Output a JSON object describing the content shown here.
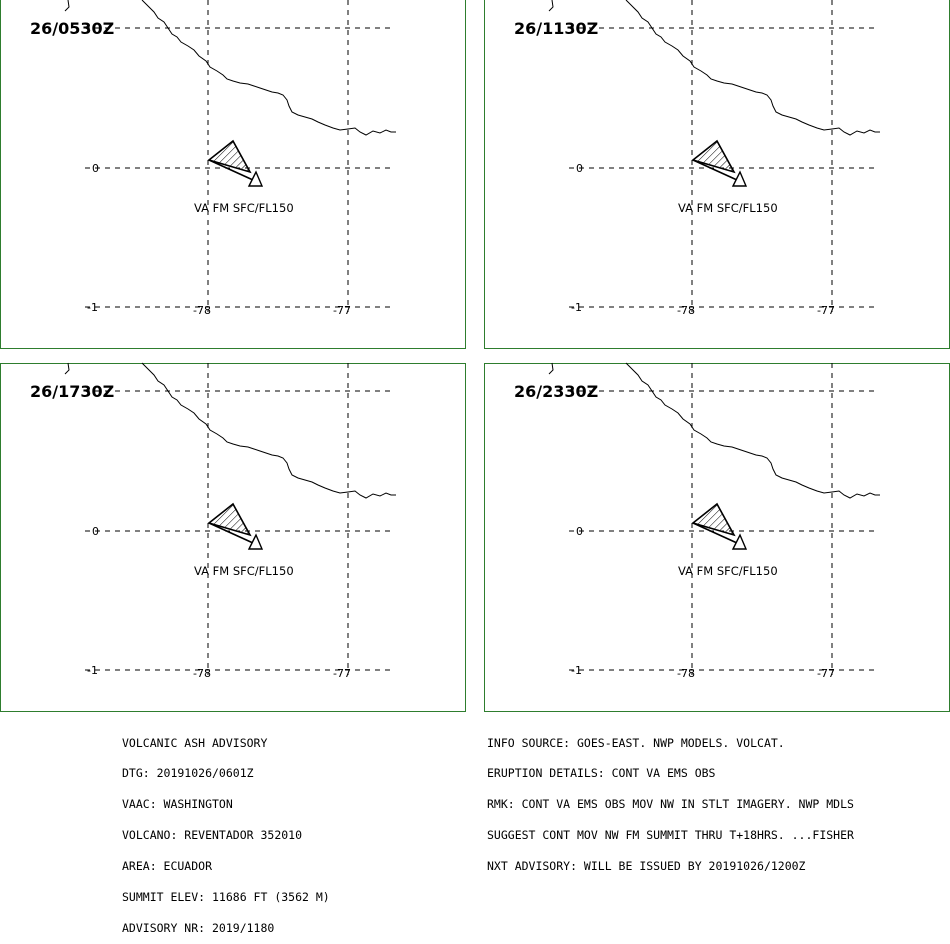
{
  "panels": [
    {
      "time_label": "26/0530Z",
      "ash_label": "VA FM SFC/FL150",
      "lat_labels": [
        "0",
        "-1"
      ],
      "lon_labels": [
        "-78",
        "-77"
      ]
    },
    {
      "time_label": "26/1130Z",
      "ash_label": "VA FM SFC/FL150",
      "lat_labels": [
        "0",
        "-1"
      ],
      "lon_labels": [
        "-78",
        "-77"
      ]
    },
    {
      "time_label": "26/1730Z",
      "ash_label": "VA FM SFC/FL150",
      "lat_labels": [
        "0",
        "-1"
      ],
      "lon_labels": [
        "-78",
        "-77"
      ]
    },
    {
      "time_label": "26/2330Z",
      "ash_label": "VA FM SFC/FL150",
      "lat_labels": [
        "0",
        "-1"
      ],
      "lon_labels": [
        "-78",
        "-77"
      ]
    }
  ],
  "advisory_left": [
    "VOLCANIC ASH ADVISORY",
    "DTG: 20191026/0601Z",
    "VAAC: WASHINGTON",
    "VOLCANO: REVENTADOR 352010",
    "AREA: ECUADOR",
    "SUMMIT ELEV: 11686 FT (3562 M)",
    "ADVISORY NR: 2019/1180"
  ],
  "advisory_right": [
    "INFO SOURCE: GOES-EAST. NWP MODELS. VOLCAT.",
    "ERUPTION DETAILS: CONT VA EMS OBS",
    "RMK: CONT VA EMS OBS MOV NW IN STLT IMAGERY. NWP MDLS",
    "SUGGEST CONT MOV NW FM SUMMIT THRU T+18HRS. ...FISHER",
    "NXT ADVISORY: WILL BE ISSUED BY 20191026/1200Z"
  ],
  "colors": {
    "frame": "#2e7d2e",
    "lines": "#000000",
    "background": "#ffffff"
  },
  "icons": {
    "ash_area": "hatched-polygon",
    "volcano": "triangle-icon"
  }
}
